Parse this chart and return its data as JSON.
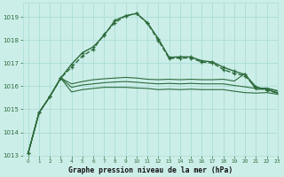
{
  "background_color": "#cceee8",
  "grid_color": "#aaddd8",
  "line_color": "#2d6b3c",
  "title": "Graphe pression niveau de la mer (hPa)",
  "xlim": [
    -0.5,
    23
  ],
  "ylim": [
    1013.0,
    1019.6
  ],
  "yticks": [
    1013,
    1014,
    1015,
    1016,
    1017,
    1018,
    1019
  ],
  "xticks": [
    0,
    1,
    2,
    3,
    4,
    5,
    6,
    7,
    8,
    9,
    10,
    11,
    12,
    13,
    14,
    15,
    16,
    17,
    18,
    19,
    20,
    21,
    22,
    23
  ],
  "series": [
    {
      "x": [
        0,
        1,
        2,
        3,
        4,
        5,
        6,
        7,
        8,
        9,
        10,
        11,
        12,
        13,
        14,
        15,
        16,
        17,
        18,
        19,
        20,
        21,
        22,
        23
      ],
      "y": [
        1013.1,
        1014.85,
        1015.55,
        1016.35,
        1015.75,
        1015.85,
        1015.9,
        1015.95,
        1015.95,
        1015.95,
        1015.92,
        1015.9,
        1015.85,
        1015.87,
        1015.85,
        1015.87,
        1015.85,
        1015.85,
        1015.85,
        1015.78,
        1015.72,
        1015.7,
        1015.72,
        1015.65
      ],
      "marker": null,
      "linewidth": 0.8,
      "linestyle": "-"
    },
    {
      "x": [
        0,
        1,
        2,
        3,
        4,
        5,
        6,
        7,
        8,
        9,
        10,
        11,
        12,
        13,
        14,
        15,
        16,
        17,
        18,
        19,
        20,
        21,
        22,
        23
      ],
      "y": [
        1013.1,
        1014.85,
        1015.55,
        1016.35,
        1015.95,
        1016.05,
        1016.1,
        1016.15,
        1016.18,
        1016.2,
        1016.17,
        1016.13,
        1016.1,
        1016.12,
        1016.1,
        1016.12,
        1016.1,
        1016.1,
        1016.1,
        1016.03,
        1015.97,
        1015.9,
        1015.92,
        1015.8
      ],
      "marker": null,
      "linewidth": 0.8,
      "linestyle": "-"
    },
    {
      "x": [
        0,
        1,
        2,
        3,
        4,
        5,
        6,
        7,
        8,
        9,
        10,
        11,
        12,
        13,
        14,
        15,
        16,
        17,
        18,
        19,
        20,
        21,
        22,
        23
      ],
      "y": [
        1013.1,
        1014.85,
        1015.55,
        1016.35,
        1016.1,
        1016.2,
        1016.28,
        1016.32,
        1016.35,
        1016.38,
        1016.35,
        1016.3,
        1016.28,
        1016.3,
        1016.28,
        1016.3,
        1016.28,
        1016.28,
        1016.3,
        1016.22,
        1016.55,
        1015.85,
        1015.9,
        1015.8
      ],
      "marker": null,
      "linewidth": 0.8,
      "linestyle": "-"
    },
    {
      "x": [
        0,
        1,
        2,
        3,
        4,
        5,
        6,
        7,
        8,
        9,
        10,
        11,
        12,
        13,
        14,
        15,
        16,
        17,
        18,
        19,
        20,
        21,
        22,
        23
      ],
      "y": [
        1013.1,
        1014.85,
        1015.55,
        1016.35,
        1016.95,
        1017.45,
        1017.7,
        1018.2,
        1018.85,
        1019.05,
        1019.15,
        1018.75,
        1018.05,
        1017.25,
        1017.27,
        1017.27,
        1017.1,
        1017.05,
        1016.82,
        1016.65,
        1016.5,
        1015.97,
        1015.85,
        1015.72
      ],
      "marker": "+",
      "linewidth": 1.0,
      "linestyle": "-"
    },
    {
      "x": [
        0,
        1,
        2,
        3,
        4,
        5,
        6,
        7,
        8,
        9,
        10,
        11,
        12,
        13,
        14,
        15,
        16,
        17,
        18,
        19,
        20,
        21,
        22,
        23
      ],
      "y": [
        1013.1,
        1014.85,
        1015.55,
        1016.35,
        1016.82,
        1017.3,
        1017.6,
        1018.25,
        1018.75,
        1019.05,
        1019.15,
        1018.72,
        1017.98,
        1017.2,
        1017.22,
        1017.22,
        1017.05,
        1017.0,
        1016.72,
        1016.55,
        1016.45,
        1015.93,
        1015.82,
        1015.7
      ],
      "marker": "+",
      "linewidth": 1.0,
      "linestyle": "--"
    }
  ]
}
